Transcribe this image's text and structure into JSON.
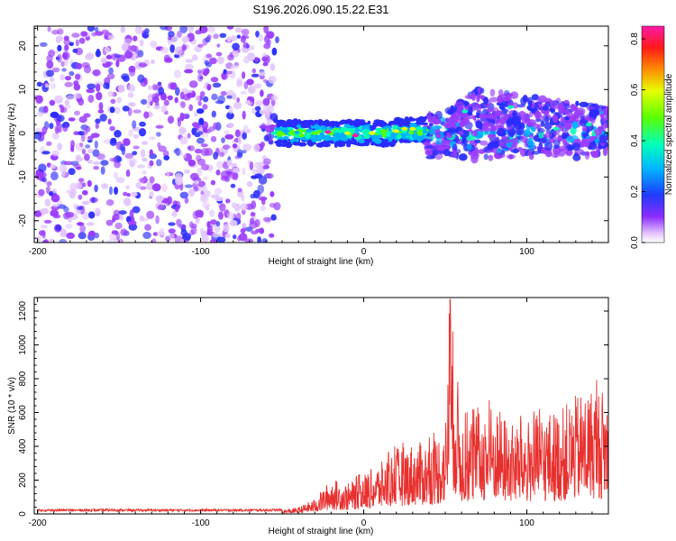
{
  "title": "S196.2026.090.15.22.E31",
  "chart_data": [
    {
      "type": "heatmap",
      "xlabel": "Height of straight line (km)",
      "ylabel": "Frequency (Hz)",
      "xlim": [
        -202,
        150
      ],
      "ylim": [
        -25,
        24.5
      ],
      "xticks": [
        -200,
        -100,
        0,
        100
      ],
      "yticks": [
        -20,
        -10,
        0,
        10,
        20
      ],
      "colorbar": {
        "label": "Normalized spectral amplitude",
        "range": [
          0.0,
          0.85
        ],
        "ticks": [
          "0.0",
          "0.2",
          "0.4",
          "0.6",
          "0.8"
        ]
      },
      "regions": [
        {
          "x": [
            -200,
            -53
          ],
          "freq": [
            -25,
            24.5
          ],
          "amplitude": "noise 0.05-0.15"
        },
        {
          "x": [
            -53,
            38
          ],
          "freq": [
            -3,
            3
          ],
          "amplitude": "0.2-0.85",
          "peak_x": -5,
          "peak_freq": -0.5
        },
        {
          "x": [
            38,
            150
          ],
          "freq": [
            -7,
            13
          ],
          "amplitude": "0.1-0.3"
        }
      ]
    },
    {
      "type": "line",
      "xlabel": "Height of straight line (km)",
      "ylabel": "SNR (10 * v/v)",
      "xlim": [
        -202,
        150
      ],
      "ylim": [
        0,
        1280
      ],
      "xticks": [
        -200,
        -100,
        0,
        100
      ],
      "yticks": [
        0,
        200,
        400,
        600,
        800,
        1000,
        1200
      ],
      "color": "#e8312f",
      "series": [
        {
          "name": "SNR",
          "x": [
            -200,
            -150,
            -100,
            -50,
            -40,
            -30,
            -20,
            -10,
            0,
            10,
            20,
            30,
            40,
            50,
            53,
            60,
            70,
            80,
            90,
            100,
            110,
            120,
            130,
            140,
            150
          ],
          "y": [
            22,
            24,
            23,
            25,
            40,
            90,
            210,
            180,
            240,
            300,
            390,
            420,
            430,
            520,
            1270,
            560,
            600,
            660,
            540,
            560,
            600,
            620,
            700,
            760,
            740
          ]
        }
      ]
    }
  ]
}
